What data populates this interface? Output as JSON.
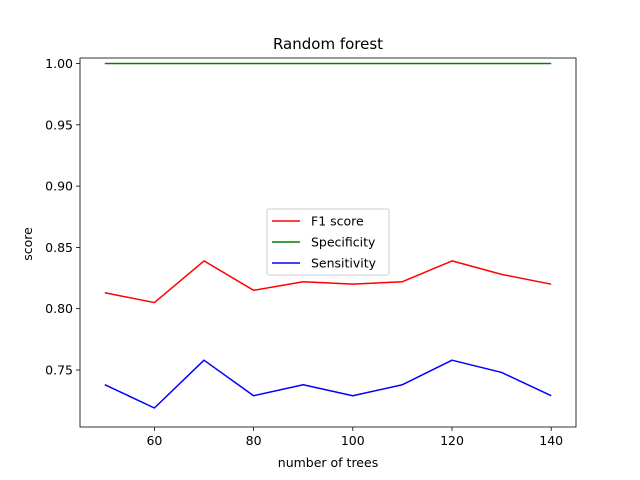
{
  "chart_data": {
    "type": "line",
    "title": "Random forest",
    "xlabel": "number of trees",
    "ylabel": "score",
    "x": [
      50,
      60,
      70,
      80,
      90,
      100,
      110,
      120,
      130,
      140
    ],
    "xlim": [
      45,
      145
    ],
    "ylim": [
      0.7035,
      1.0045
    ],
    "xticks": [
      60,
      80,
      100,
      120,
      140
    ],
    "yticks": [
      0.75,
      0.8,
      0.85,
      0.9,
      0.95,
      1.0
    ],
    "xtick_labels": [
      "60",
      "80",
      "100",
      "120",
      "140"
    ],
    "ytick_labels": [
      "0.75",
      "0.80",
      "0.85",
      "0.90",
      "0.95",
      "1.00"
    ],
    "grid": false,
    "legend_position": "center",
    "series": [
      {
        "name": "F1 score",
        "color": "#ff0000",
        "values": [
          0.813,
          0.805,
          0.839,
          0.815,
          0.822,
          0.82,
          0.822,
          0.839,
          0.828,
          0.82
        ]
      },
      {
        "name": "Specificity",
        "color": "#008000",
        "values": [
          1.0,
          1.0,
          1.0,
          1.0,
          1.0,
          1.0,
          1.0,
          1.0,
          1.0,
          1.0
        ]
      },
      {
        "name": "Sensitivity",
        "color": "#0000ff",
        "values": [
          0.738,
          0.719,
          0.758,
          0.729,
          0.738,
          0.729,
          0.738,
          0.758,
          0.748,
          0.729
        ]
      }
    ]
  }
}
